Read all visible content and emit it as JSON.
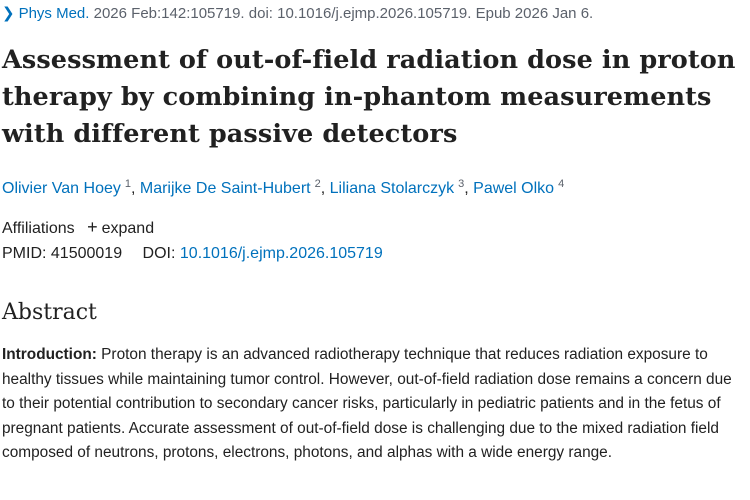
{
  "citation": {
    "journal": "Phys Med.",
    "details": "2026 Feb:142:105719. doi: 10.1016/j.ejmp.2026.105719. Epub 2026 Jan 6."
  },
  "article": {
    "title": "Assessment of out-of-field radiation dose in proton therapy by combining in-phantom measurements with different passive detectors",
    "authors": [
      {
        "name": "Olivier Van Hoey",
        "aff": "1"
      },
      {
        "name": "Marijke De Saint-Hubert",
        "aff": "2"
      },
      {
        "name": "Liliana Stolarczyk",
        "aff": "3"
      },
      {
        "name": "Pawel Olko",
        "aff": "4"
      }
    ],
    "affiliations_label": "Affiliations",
    "expand_label": "expand",
    "pmid_label": "PMID:",
    "pmid": "41500019",
    "doi_label": "DOI:",
    "doi": "10.1016/j.ejmp.2026.105719"
  },
  "abstract": {
    "heading": "Abstract",
    "intro_label": "Introduction:",
    "intro_text": "Proton therapy is an advanced radiotherapy technique that reduces radiation exposure to healthy tissues while maintaining tumor control. However, out-of-field radiation dose remains a concern due to their potential contribution to secondary cancer risks, particularly in pediatric patients and in the fetus of pregnant patients. Accurate assessment of out-of-field dose is challenging due to the mixed radiation field composed of neutrons, protons, electrons, photons, and alphas with a wide energy range."
  },
  "icons": {
    "chevron": "chevron-right-icon",
    "plus": "plus-icon"
  },
  "colors": {
    "link": "#0071bc",
    "text": "#212121",
    "muted": "#5b616b"
  }
}
